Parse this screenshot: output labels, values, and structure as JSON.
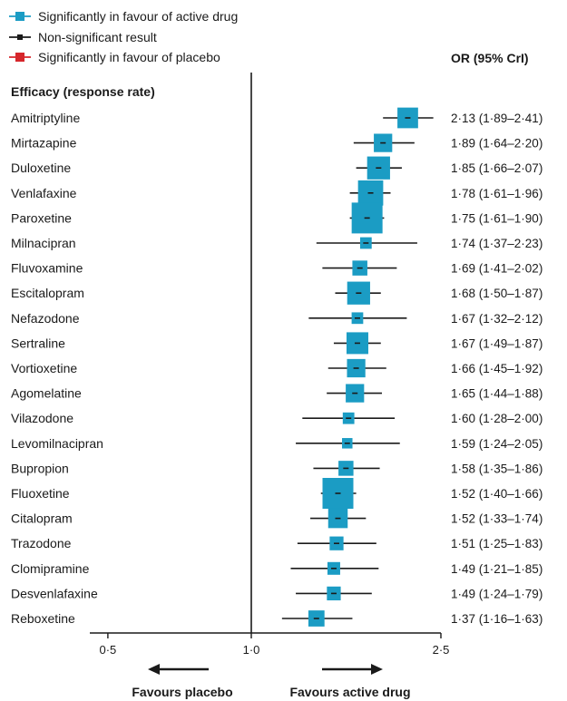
{
  "legend": {
    "active": "Significantly in favour of active drug",
    "nonsig": "Non-significant result",
    "placebo": "Significantly in favour of placebo",
    "colors": {
      "active": "#1b9cc4",
      "nonsig": "#1a1a1a",
      "placebo": "#d6262b"
    }
  },
  "chart_data": {
    "type": "forest",
    "section_title": "Efficacy (response rate)",
    "or_header": "OR (95% CrI)",
    "x_scale": "log",
    "xlim": [
      0.5,
      2.5
    ],
    "x_ticks": [
      {
        "value": 0.5,
        "label": "0·5"
      },
      {
        "value": 1.0,
        "label": "1·0"
      },
      {
        "value": 2.5,
        "label": "2·5"
      }
    ],
    "reference_line": 1.0,
    "left_arrow": "Favours placebo",
    "right_arrow": "Favours active drug",
    "rows": [
      {
        "drug": "Amitriptyline",
        "or": 2.13,
        "lo": 1.89,
        "hi": 2.41,
        "ci_text": "2·13 (1·89–2·41)",
        "sig": "active",
        "weight": 0.55
      },
      {
        "drug": "Mirtazapine",
        "or": 1.89,
        "lo": 1.64,
        "hi": 2.2,
        "ci_text": "1·89 (1·64–2·20)",
        "sig": "active",
        "weight": 0.45
      },
      {
        "drug": "Duloxetine",
        "or": 1.85,
        "lo": 1.66,
        "hi": 2.07,
        "ci_text": "1·85 (1·66–2·07)",
        "sig": "active",
        "weight": 0.65
      },
      {
        "drug": "Venlafaxine",
        "or": 1.78,
        "lo": 1.61,
        "hi": 1.96,
        "ci_text": "1·78 (1·61–1·96)",
        "sig": "active",
        "weight": 0.75
      },
      {
        "drug": "Paroxetine",
        "or": 1.75,
        "lo": 1.61,
        "hi": 1.9,
        "ci_text": "1·75 (1·61–1·90)",
        "sig": "active",
        "weight": 1.0
      },
      {
        "drug": "Milnacipran",
        "or": 1.74,
        "lo": 1.37,
        "hi": 2.23,
        "ci_text": "1·74 (1·37–2·23)",
        "sig": "active",
        "weight": 0.15
      },
      {
        "drug": "Fluvoxamine",
        "or": 1.69,
        "lo": 1.41,
        "hi": 2.02,
        "ci_text": "1·69 (1·41–2·02)",
        "sig": "active",
        "weight": 0.3
      },
      {
        "drug": "Escitalopram",
        "or": 1.68,
        "lo": 1.5,
        "hi": 1.87,
        "ci_text": "1·68 (1·50–1·87)",
        "sig": "active",
        "weight": 0.65
      },
      {
        "drug": "Nefazodone",
        "or": 1.67,
        "lo": 1.32,
        "hi": 2.12,
        "ci_text": "1·67 (1·32–2·12)",
        "sig": "active",
        "weight": 0.15
      },
      {
        "drug": "Sertraline",
        "or": 1.67,
        "lo": 1.49,
        "hi": 1.87,
        "ci_text": "1·67 (1·49–1·87)",
        "sig": "active",
        "weight": 0.6
      },
      {
        "drug": "Vortioxetine",
        "or": 1.66,
        "lo": 1.45,
        "hi": 1.92,
        "ci_text": "1·66 (1·45–1·92)",
        "sig": "active",
        "weight": 0.45
      },
      {
        "drug": "Agomelatine",
        "or": 1.65,
        "lo": 1.44,
        "hi": 1.88,
        "ci_text": "1·65 (1·44–1·88)",
        "sig": "active",
        "weight": 0.45
      },
      {
        "drug": "Vilazodone",
        "or": 1.6,
        "lo": 1.28,
        "hi": 2.0,
        "ci_text": "1·60 (1·28–2·00)",
        "sig": "active",
        "weight": 0.15
      },
      {
        "drug": "Levomilnacipran",
        "or": 1.59,
        "lo": 1.24,
        "hi": 2.05,
        "ci_text": "1·59 (1·24–2·05)",
        "sig": "active",
        "weight": 0.1
      },
      {
        "drug": "Bupropion",
        "or": 1.58,
        "lo": 1.35,
        "hi": 1.86,
        "ci_text": "1·58 (1·35–1·86)",
        "sig": "active",
        "weight": 0.3
      },
      {
        "drug": "Fluoxetine",
        "or": 1.52,
        "lo": 1.4,
        "hi": 1.66,
        "ci_text": "1·52 (1·40–1·66)",
        "sig": "active",
        "weight": 1.0
      },
      {
        "drug": "Citalopram",
        "or": 1.52,
        "lo": 1.33,
        "hi": 1.74,
        "ci_text": "1·52 (1·33–1·74)",
        "sig": "active",
        "weight": 0.5
      },
      {
        "drug": "Trazodone",
        "or": 1.51,
        "lo": 1.25,
        "hi": 1.83,
        "ci_text": "1·51 (1·25–1·83)",
        "sig": "active",
        "weight": 0.25
      },
      {
        "drug": "Clomipramine",
        "or": 1.49,
        "lo": 1.21,
        "hi": 1.85,
        "ci_text": "1·49 (1·21–1·85)",
        "sig": "active",
        "weight": 0.2
      },
      {
        "drug": "Desvenlafaxine",
        "or": 1.49,
        "lo": 1.24,
        "hi": 1.79,
        "ci_text": "1·49 (1·24–1·79)",
        "sig": "active",
        "weight": 0.25
      },
      {
        "drug": "Reboxetine",
        "or": 1.37,
        "lo": 1.16,
        "hi": 1.63,
        "ci_text": "1·37 (1·16–1·63)",
        "sig": "active",
        "weight": 0.35
      }
    ]
  }
}
